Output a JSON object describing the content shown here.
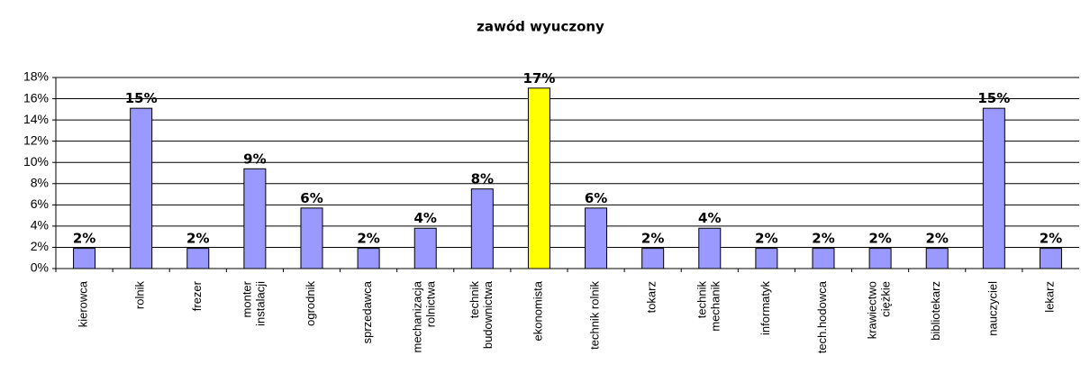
{
  "chart_data": {
    "type": "bar",
    "title": "zawód wyuczony",
    "categories": [
      "kierowca",
      "rolnik",
      "frezer",
      "monter\ninstalacji",
      "ogrodnik",
      "sprzedawca",
      "mechanizacja\nrolnictwa",
      "technik\nbudownictwa",
      "ekonomista",
      "technik rolnik",
      "tokarz",
      "technik\nmechanik",
      "informatyk",
      "tech.hodowca",
      "krawiectwo\nciężkie",
      "bibliotekarz",
      "nauczyciel",
      "lekarz"
    ],
    "values": [
      1.9,
      15.1,
      1.9,
      9.4,
      5.7,
      1.9,
      3.8,
      7.5,
      17.0,
      5.7,
      1.9,
      3.8,
      1.9,
      1.9,
      1.9,
      1.9,
      15.1,
      1.9
    ],
    "value_labels": [
      "2%",
      "15%",
      "2%",
      "9%",
      "6%",
      "2%",
      "4%",
      "8%",
      "17%",
      "6%",
      "2%",
      "4%",
      "2%",
      "2%",
      "2%",
      "2%",
      "15%",
      "2%"
    ],
    "colors": [
      "#9999ff",
      "#9999ff",
      "#9999ff",
      "#9999ff",
      "#9999ff",
      "#9999ff",
      "#9999ff",
      "#9999ff",
      "#ffff00",
      "#9999ff",
      "#9999ff",
      "#9999ff",
      "#9999ff",
      "#9999ff",
      "#9999ff",
      "#9999ff",
      "#9999ff",
      "#9999ff"
    ],
    "ylim": [
      0,
      18
    ],
    "yticks": [
      {
        "value": 0,
        "label": "0%"
      },
      {
        "value": 2,
        "label": "2%"
      },
      {
        "value": 4,
        "label": "4%"
      },
      {
        "value": 6,
        "label": "6%"
      },
      {
        "value": 8,
        "label": "8%"
      },
      {
        "value": 10,
        "label": "10%"
      },
      {
        "value": 12,
        "label": "12%"
      },
      {
        "value": 14,
        "label": "14%"
      },
      {
        "value": 16,
        "label": "16%"
      },
      {
        "value": 18,
        "label": "18%"
      }
    ],
    "grid": true
  }
}
